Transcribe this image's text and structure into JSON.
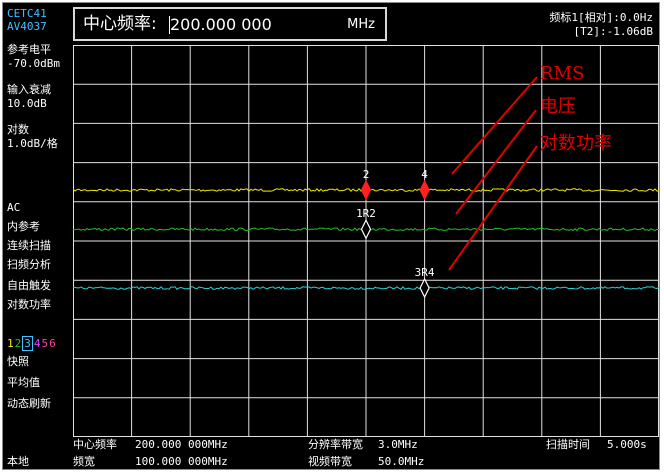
{
  "header": {
    "model_line1": "CETC41",
    "model_line2": "AV4037",
    "center_freq_label": "中心频率:",
    "center_freq_value": "200.000 000",
    "center_freq_unit": "MHz",
    "marker_line1": "频标1[相对]:0.0Hz",
    "marker_line2": "[T2]:-1.06dB"
  },
  "left_panel": {
    "ref_level_label": "参考电平",
    "ref_level_value": "-70.0dBm",
    "atten_label": "输入衰减",
    "atten_value": "10.0dB",
    "scale_label": "对数",
    "scale_value": "1.0dB/格",
    "coupling": "AC",
    "reference": "内参考",
    "sweep_mode": "连续扫描",
    "analysis": "扫频分析",
    "trigger": "自由触发",
    "detector": "对数功率",
    "trace_numbers": [
      "1",
      "2",
      "3",
      "4",
      "5",
      "6"
    ],
    "snapshot": "快照",
    "average": "平均值",
    "refresh": "动态刷新"
  },
  "footer": {
    "center_label": "中心频率",
    "center_value": "200.000 000MHz",
    "span_label": "频宽",
    "span_value": "100.000 000MHz",
    "rbw_label": "分辨率带宽",
    "rbw_value": "3.0MHz",
    "vbw_label": "视频带宽",
    "vbw_value": "50.0MHz",
    "sweep_time_label": "扫描时间",
    "sweep_time_value": "5.000s",
    "local": "本地"
  },
  "markers": [
    {
      "label": "2",
      "x_div": 5,
      "level_db": -73.7,
      "style": "filled"
    },
    {
      "label": "4",
      "x_div": 6,
      "level_db": -73.7,
      "style": "filled"
    },
    {
      "label": "1R2",
      "x_div": 5,
      "level_db": -74.7,
      "style": "hollow"
    },
    {
      "label": "3R4",
      "x_div": 6,
      "level_db": -76.2,
      "style": "hollow"
    }
  ],
  "annotations": [
    "RMS",
    "电压",
    "对数功率"
  ],
  "colors": {
    "trace_rms": "#e8e800",
    "trace_voltage": "#22c022",
    "trace_logpower": "#30d0d0",
    "marker_fill": "#ff2020",
    "grid": "#e0e0e0",
    "annotation": "#e00000",
    "trace_num_colors": [
      "#e8e800",
      "#22c022",
      "#3fc0ff",
      "#d040ff",
      "#ff40a0",
      "#ff40a0"
    ]
  },
  "chart_data": {
    "type": "line",
    "x_divisions": 10,
    "y_divisions": 10,
    "x_range_mhz": [
      150,
      250
    ],
    "ylim_db": [
      -80,
      -70
    ],
    "series": [
      {
        "name": "RMS",
        "level_db": -73.7
      },
      {
        "name": "电压",
        "level_db": -74.7
      },
      {
        "name": "对数功率",
        "level_db": -76.2
      }
    ]
  }
}
